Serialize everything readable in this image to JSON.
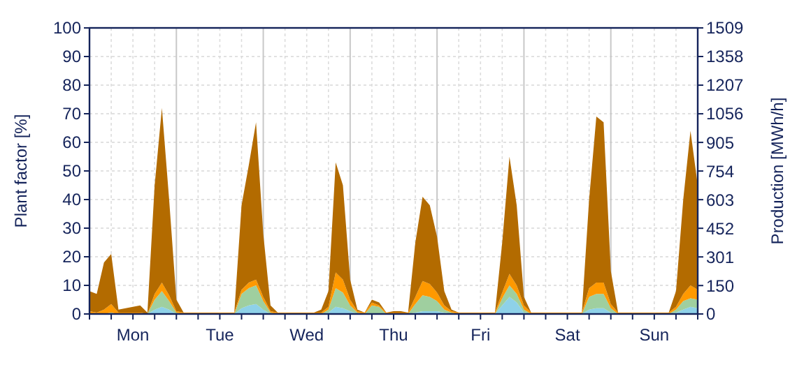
{
  "chart_data": {
    "type": "area",
    "stacked": true,
    "ylabel": "Plant factor [%]",
    "y2label": "Production [MWh/h]",
    "categories": [
      null,
      null,
      null,
      null,
      null,
      null,
      "Mon",
      null,
      null,
      null,
      null,
      null,
      null,
      null,
      null,
      null,
      null,
      null,
      "Tue",
      null,
      null,
      null,
      null,
      null,
      null,
      null,
      null,
      null,
      null,
      null,
      "Wed",
      null,
      null,
      null,
      null,
      null,
      null,
      null,
      null,
      null,
      null,
      null,
      "Thu",
      null,
      null,
      null,
      null,
      null,
      null,
      null,
      null,
      null,
      null,
      null,
      "Fri",
      null,
      null,
      null,
      null,
      null,
      null,
      null,
      null,
      null,
      null,
      null,
      "Sat",
      null,
      null,
      null,
      null,
      null,
      null,
      null,
      null,
      null,
      null,
      null,
      "Sun",
      null,
      null,
      null,
      null,
      null,
      null
    ],
    "series": [
      {
        "color": "#8ed1e8",
        "values": [
          0,
          0,
          0,
          0,
          0,
          0,
          0,
          0,
          0,
          1.5,
          2.5,
          1.5,
          0,
          0,
          0,
          0,
          0,
          0,
          0,
          0,
          0,
          2,
          3,
          3.5,
          1.5,
          0,
          0,
          0,
          0,
          0,
          0,
          0,
          0,
          0.5,
          2.5,
          2,
          1,
          0,
          0,
          0,
          0,
          0,
          0,
          0,
          0,
          0.5,
          1,
          1,
          1,
          0.5,
          0,
          0,
          0,
          0,
          0,
          0,
          0,
          3,
          6,
          4,
          0.5,
          0,
          0,
          0,
          0,
          0,
          0,
          0,
          0,
          1.5,
          2,
          2,
          0.5,
          0,
          0,
          0,
          0,
          0,
          0,
          0,
          0,
          0.5,
          1.5,
          2.5,
          2
        ]
      },
      {
        "color": "#9fcf9f",
        "values": [
          0,
          0,
          0,
          0.5,
          0,
          0,
          0,
          0,
          0,
          3.5,
          5.5,
          3,
          0.5,
          0,
          0,
          0,
          0,
          0,
          0,
          0,
          0,
          5,
          6,
          6.5,
          3,
          0.5,
          0,
          0,
          0,
          0,
          0,
          0,
          0,
          1,
          6.5,
          5.5,
          2,
          0.5,
          0,
          3,
          2.5,
          0,
          0,
          0,
          0,
          3,
          5.5,
          5,
          3.5,
          1,
          0.5,
          0,
          0,
          0,
          0,
          0,
          0,
          2.5,
          4,
          3,
          1,
          0,
          0,
          0,
          0,
          0,
          0,
          0,
          0,
          4.5,
          5,
          5,
          1.5,
          0,
          0,
          0,
          0,
          0,
          0,
          0,
          0,
          1,
          3,
          3,
          3
        ]
      },
      {
        "color": "#ff9900",
        "values": [
          1,
          0.5,
          1.5,
          3,
          0.5,
          0.5,
          0.5,
          0.5,
          0,
          2,
          3,
          2,
          0.5,
          0.5,
          0.5,
          0.5,
          0.5,
          0.5,
          0.5,
          0.5,
          0.5,
          1.5,
          2,
          2,
          1.5,
          0.5,
          0.5,
          0.5,
          0.5,
          0.5,
          0.5,
          0.5,
          0.5,
          1,
          5.5,
          4.5,
          2,
          0.5,
          0.5,
          1,
          0.5,
          0.5,
          0.5,
          0.5,
          0.5,
          2.5,
          5,
          4.5,
          3,
          1.5,
          0.5,
          0.5,
          0.5,
          0.5,
          0.5,
          0.5,
          0.5,
          2,
          4,
          3,
          1.5,
          0.5,
          0.5,
          0.5,
          0.5,
          0.5,
          0.5,
          0.5,
          0.5,
          3,
          4,
          4,
          1.5,
          0.5,
          0.5,
          0.5,
          0.5,
          0.5,
          0.5,
          0.5,
          0.5,
          1,
          2.5,
          4.5,
          3.5
        ]
      },
      {
        "color": "#b36b00",
        "values": [
          7,
          6.5,
          16.5,
          17.5,
          1,
          1.5,
          2,
          2.5,
          0.5,
          38,
          61,
          33.5,
          4,
          0,
          0,
          0,
          0,
          0,
          0,
          0,
          0,
          29.5,
          41,
          55,
          22,
          2,
          0,
          0,
          0,
          0,
          0,
          0,
          1,
          5.5,
          38.5,
          33,
          7,
          0.5,
          0,
          1,
          1,
          0,
          0.5,
          0.5,
          0,
          19,
          29.5,
          27.5,
          19.5,
          5,
          0.5,
          0,
          0,
          0,
          0,
          0,
          0,
          17.5,
          41,
          28,
          3,
          0,
          0,
          0,
          0,
          0,
          0,
          0,
          0,
          31,
          58,
          56,
          11.5,
          0,
          0,
          0,
          0,
          0,
          0,
          0,
          0,
          5.5,
          33,
          54,
          36.5
        ]
      }
    ],
    "ylim": [
      0,
      100
    ],
    "yticks": [
      0,
      10,
      20,
      30,
      40,
      50,
      60,
      70,
      80,
      90,
      100
    ],
    "y2lim": [
      0,
      1509
    ],
    "y2ticks": [
      0,
      150,
      301,
      452,
      603,
      754,
      905,
      1056,
      1207,
      1358,
      1509
    ],
    "grid": true
  }
}
